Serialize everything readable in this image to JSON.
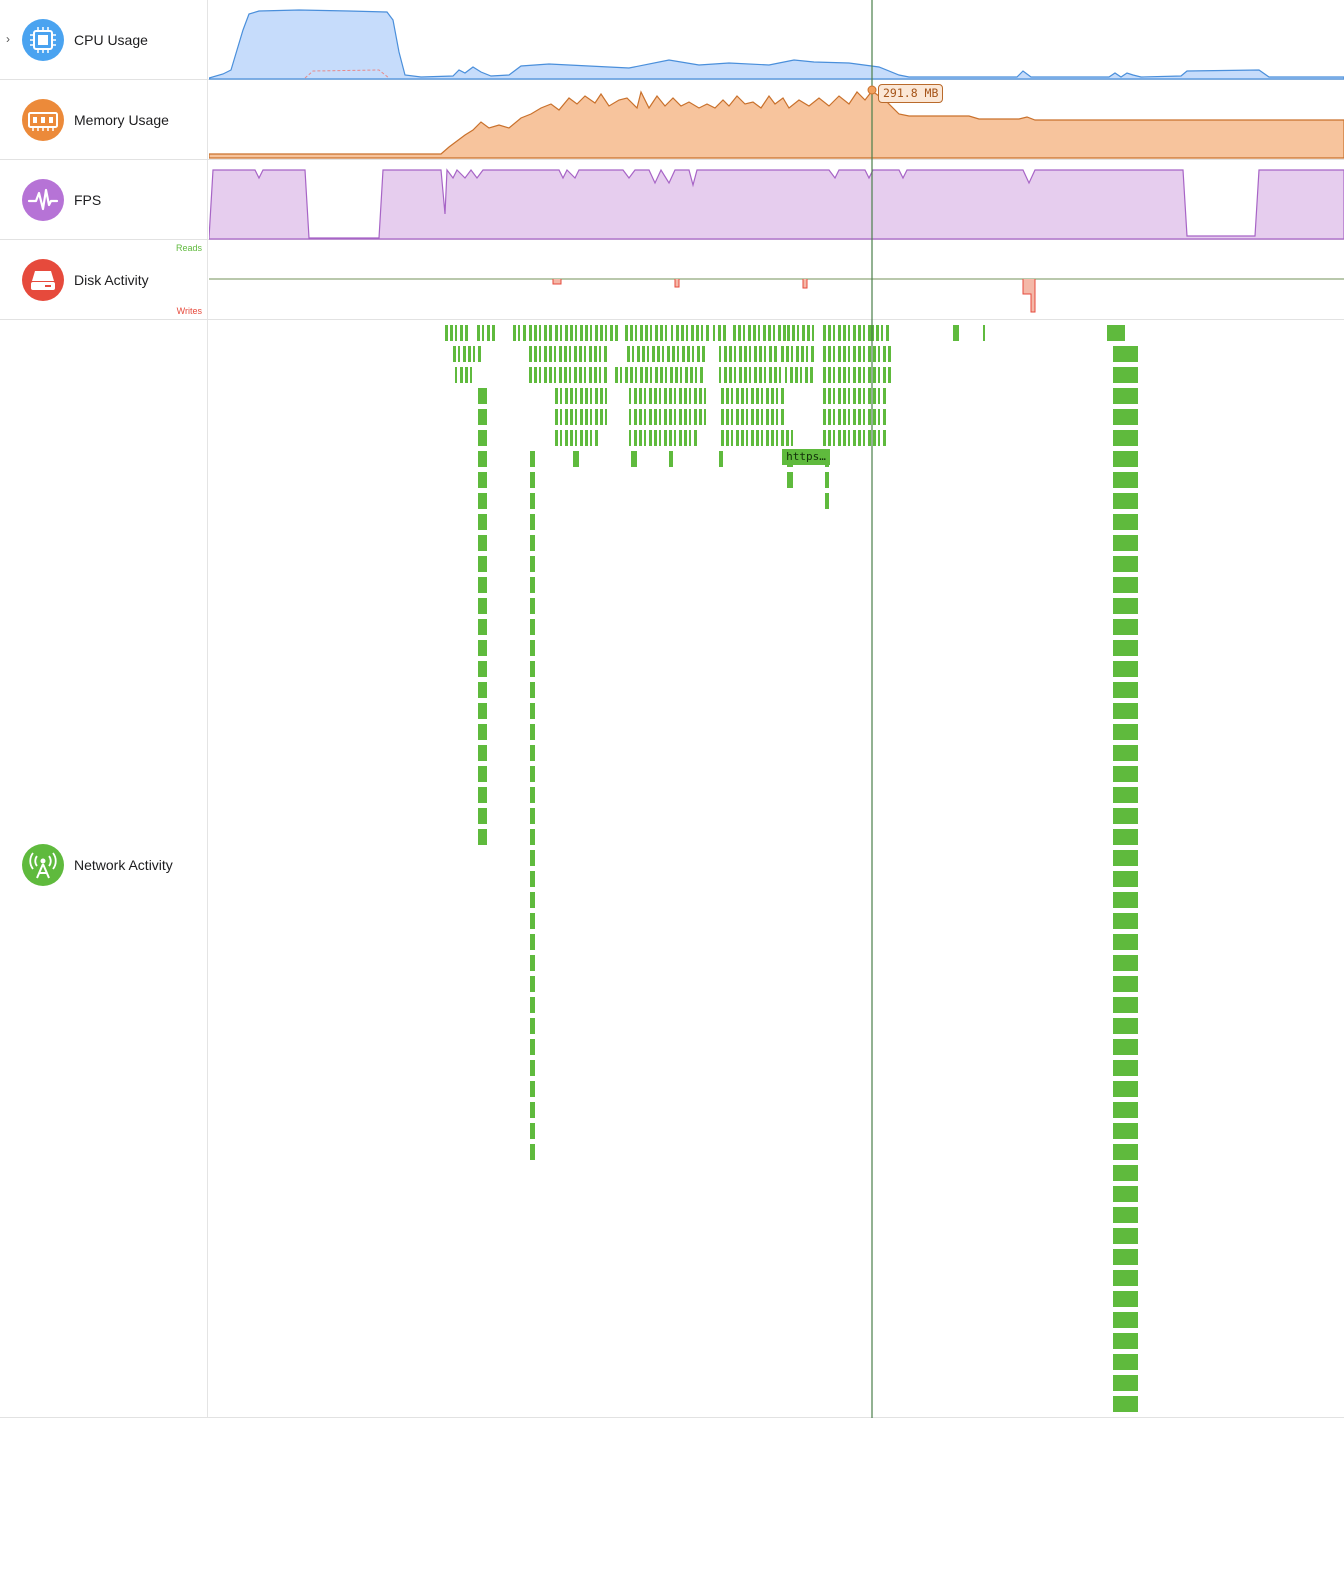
{
  "tracks": {
    "cpu": {
      "label": "CPU Usage",
      "icon": "cpu-chip-icon",
      "color": "#4aa3f0",
      "expand_icon": "chevron-right-icon"
    },
    "memory": {
      "label": "Memory Usage",
      "icon": "memory-ram-icon",
      "color": "#ec8a3a",
      "current_value": "291.8 MB"
    },
    "fps": {
      "label": "FPS",
      "icon": "pulse-icon",
      "color": "#b673d6"
    },
    "disk": {
      "label": "Disk Activity",
      "icon": "disk-drive-icon",
      "color": "#e64a3c",
      "reads_label": "Reads",
      "writes_label": "Writes"
    },
    "network": {
      "label": "Network Activity",
      "icon": "antenna-icon",
      "color": "#5fba3d",
      "request_label": "https…"
    }
  },
  "colors": {
    "cpu_fill": "#c6dcfb",
    "cpu_line": "#4a8fdb",
    "memory_fill": "#f7c49d",
    "memory_line": "#c9712c",
    "fps_fill": "#e6cdee",
    "fps_line": "#a764c6",
    "disk_read": "#5fba3d",
    "disk_write": "#e64a3c",
    "network_bar": "#5fba3d",
    "playhead": "#4a7f4a"
  }
}
